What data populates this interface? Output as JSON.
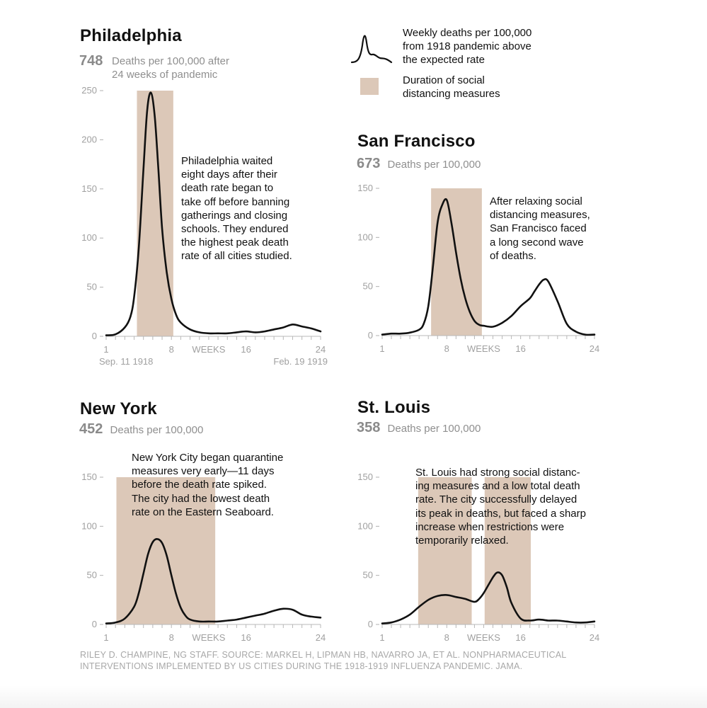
{
  "legend": {
    "curve_label_lines": [
      "Weekly deaths per 100,000",
      "from 1918 pandemic above",
      "the expected rate"
    ],
    "band_label_lines": [
      "Duration of social",
      "distancing measures"
    ],
    "band_color": "#dcc8b8",
    "line_color": "#111111"
  },
  "footer": {
    "lines": [
      "RILEY D. CHAMPINE, NG STAFF. SOURCE: MARKEL H, LIPMAN HB, NAVARRO JA, ET AL. NONPHARMACEUTICAL",
      "INTERVENTIONS IMPLEMENTED BY US CITIES DURING THE 1918-1919 INFLUENZA PANDEMIC. JAMA."
    ]
  },
  "chart_data": [
    {
      "type": "area",
      "city": "Philadelphia",
      "title": "Philadelphia",
      "total": "748",
      "total_caption_lines": [
        "Deaths per 100,000 after",
        "24 weeks of pandemic"
      ],
      "note_lines": [
        "Philadelphia waited",
        "eight days after their",
        "death rate began to",
        "take off before banning",
        "gatherings and closing",
        "schools. They endured",
        "the highest peak death",
        "rate of all cities studied."
      ],
      "ylabel": "Weekly deaths per 100,000",
      "ylim": [
        0,
        250
      ],
      "yticks": [
        "0",
        "50",
        "100",
        "150",
        "200",
        "250"
      ],
      "xlim": [
        1,
        24
      ],
      "xticks": [
        "1",
        "8",
        "WEEKS",
        "16",
        "24"
      ],
      "date_start": "Sep. 11 1918",
      "date_end": "Feb. 19 1919",
      "distancing": [
        [
          4.3,
          8.2
        ]
      ],
      "series": {
        "name": "Weekly deaths per 100,000",
        "x": [
          1,
          2,
          3,
          3.6,
          4,
          4.5,
          5,
          5.4,
          5.8,
          6.2,
          6.6,
          7,
          7.5,
          8,
          8.5,
          9,
          10,
          11,
          12,
          13,
          14,
          15,
          16,
          17,
          18,
          19,
          20,
          21,
          22,
          23,
          24
        ],
        "values": [
          1,
          2,
          9,
          20,
          40,
          90,
          170,
          230,
          248,
          225,
          170,
          110,
          65,
          38,
          22,
          14,
          7,
          4,
          3,
          3,
          3,
          4,
          5,
          4,
          5,
          7,
          9,
          12,
          10,
          8,
          5
        ]
      }
    },
    {
      "type": "area",
      "city": "San Francisco",
      "title": "San Francisco",
      "total": "673",
      "total_caption_lines": [
        "Deaths per 100,000"
      ],
      "note_lines": [
        "After relaxing social",
        "distancing measures,",
        "San Francisco faced",
        "a long second wave",
        "of deaths."
      ],
      "ylabel": "Weekly deaths per 100,000",
      "ylim": [
        0,
        150
      ],
      "yticks": [
        "0",
        "50",
        "100",
        "150"
      ],
      "xlim": [
        1,
        24
      ],
      "xticks": [
        "1",
        "8",
        "WEEKS",
        "16",
        "24"
      ],
      "distancing": [
        [
          6.3,
          11.8
        ]
      ],
      "series": {
        "name": "Weekly deaths per 100,000",
        "x": [
          1,
          2,
          3,
          4,
          5,
          5.5,
          6,
          6.5,
          7,
          7.5,
          8,
          8.5,
          9,
          9.5,
          10,
          10.5,
          11,
          11.5,
          12,
          13,
          14,
          15,
          16,
          17,
          17.5,
          18,
          18.5,
          19,
          20,
          21,
          22,
          23,
          24
        ],
        "values": [
          1,
          2,
          2,
          3,
          6,
          12,
          30,
          70,
          115,
          133,
          138,
          115,
          85,
          58,
          38,
          24,
          15,
          11,
          10,
          9,
          13,
          20,
          30,
          38,
          45,
          52,
          57,
          55,
          35,
          12,
          4,
          1,
          1
        ]
      }
    },
    {
      "type": "area",
      "city": "New York",
      "title": "New York",
      "total": "452",
      "total_caption_lines": [
        "Deaths per 100,000"
      ],
      "note_lines": [
        "New York City began quarantine",
        "measures very early—11 days",
        "before the death rate spiked.",
        "The city had the lowest death",
        "rate on the Eastern Seaboard."
      ],
      "ylabel": "Weekly deaths per 100,000",
      "ylim": [
        0,
        150
      ],
      "yticks": [
        "0",
        "50",
        "100",
        "150"
      ],
      "xlim": [
        1,
        24
      ],
      "xticks": [
        "1",
        "8",
        "WEEKS",
        "16",
        "24"
      ],
      "distancing": [
        [
          2.1,
          12.7
        ]
      ],
      "series": {
        "name": "Weekly deaths per 100,000",
        "x": [
          1,
          2,
          3,
          4,
          4.5,
          5,
          5.5,
          6,
          6.5,
          7,
          7.5,
          8,
          8.5,
          9,
          9.5,
          10,
          11,
          12,
          13,
          14,
          15,
          16,
          17,
          18,
          19,
          20,
          21,
          22,
          23,
          24
        ],
        "values": [
          1,
          2,
          6,
          18,
          32,
          52,
          72,
          84,
          87,
          83,
          70,
          50,
          31,
          17,
          9,
          5,
          3,
          3,
          3,
          4,
          5,
          7,
          9,
          11,
          14,
          16,
          15,
          10,
          8,
          7
        ]
      }
    },
    {
      "type": "area",
      "city": "St. Louis",
      "title": "St. Louis",
      "total": "358",
      "total_caption_lines": [
        "Deaths per 100,000"
      ],
      "note_lines": [
        "St. Louis had strong social distanc-",
        "ing measures and a low total death",
        "rate. The city successfully delayed",
        "its peak in deaths, but faced a sharp",
        "increase when restrictions were",
        "temporarily relaxed."
      ],
      "ylabel": "Weekly deaths per 100,000",
      "ylim": [
        0,
        150
      ],
      "yticks": [
        "0",
        "50",
        "100",
        "150"
      ],
      "xlim": [
        1,
        24
      ],
      "xticks": [
        "1",
        "8",
        "WEEKS",
        "16",
        "24"
      ],
      "distancing": [
        [
          4.9,
          10.7
        ],
        [
          12.1,
          17.1
        ]
      ],
      "series": {
        "name": "Weekly deaths per 100,000",
        "x": [
          1,
          2,
          3,
          4,
          5,
          6,
          7,
          8,
          9,
          10,
          11,
          11.5,
          12,
          13,
          13.5,
          14,
          14.5,
          15,
          16,
          17,
          18,
          19,
          20,
          21,
          22,
          23,
          24
        ],
        "values": [
          1,
          2,
          5,
          10,
          18,
          25,
          29,
          30,
          28,
          26,
          23,
          26,
          32,
          48,
          53,
          50,
          38,
          22,
          6,
          4,
          5,
          4,
          4,
          3,
          2,
          2,
          3
        ]
      }
    }
  ]
}
